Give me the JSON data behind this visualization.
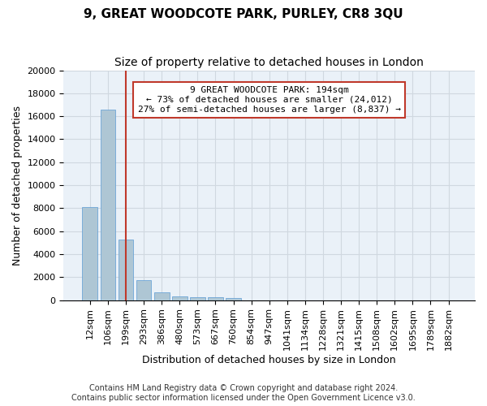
{
  "title": "9, GREAT WOODCOTE PARK, PURLEY, CR8 3QU",
  "subtitle": "Size of property relative to detached houses in London",
  "xlabel": "Distribution of detached houses by size in London",
  "ylabel": "Number of detached properties",
  "categories": [
    "12sqm",
    "106sqm",
    "199sqm",
    "293sqm",
    "386sqm",
    "480sqm",
    "573sqm",
    "667sqm",
    "760sqm",
    "854sqm",
    "947sqm",
    "1041sqm",
    "1134sqm",
    "1228sqm",
    "1321sqm",
    "1415sqm",
    "1508sqm",
    "1602sqm",
    "1695sqm",
    "1789sqm",
    "1882sqm"
  ],
  "values": [
    8100,
    16600,
    5300,
    1750,
    700,
    360,
    270,
    220,
    160,
    0,
    0,
    0,
    0,
    0,
    0,
    0,
    0,
    0,
    0,
    0,
    0
  ],
  "bar_color": "#aec6d4",
  "bar_edge_color": "#5b9bd5",
  "bar_edge_width": 0.5,
  "property_line_x": 2,
  "property_line_color": "#c0392b",
  "annotation_text": "9 GREAT WOODCOTE PARK: 194sqm\n← 73% of detached houses are smaller (24,012)\n27% of semi-detached houses are larger (8,837) →",
  "annotation_box_color": "#c0392b",
  "ylim": [
    0,
    20000
  ],
  "yticks": [
    0,
    2000,
    4000,
    6000,
    8000,
    10000,
    12000,
    14000,
    16000,
    18000,
    20000
  ],
  "grid_color": "#d0d8e0",
  "background_color": "#eaf1f8",
  "footer": "Contains HM Land Registry data © Crown copyright and database right 2024.\nContains public sector information licensed under the Open Government Licence v3.0.",
  "title_fontsize": 11,
  "subtitle_fontsize": 10,
  "axis_label_fontsize": 9,
  "tick_fontsize": 8,
  "annotation_fontsize": 8,
  "footer_fontsize": 7
}
